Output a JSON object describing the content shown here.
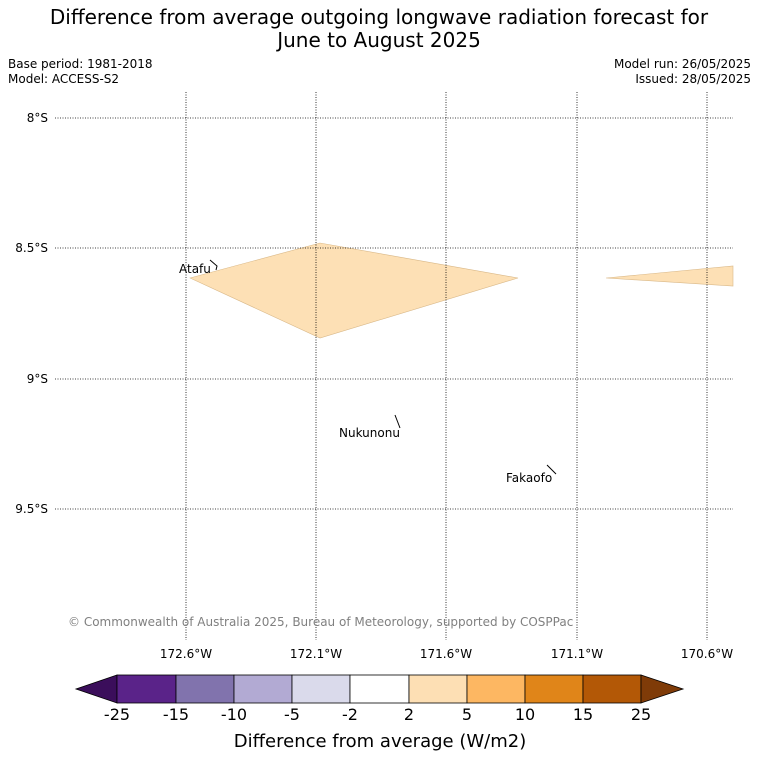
{
  "title_line1": "Difference from average outgoing longwave radiation forecast for",
  "title_line2": "June to August 2025",
  "base_period": "Base period: 1981-2018",
  "model": "Model: ACCESS-S2",
  "model_run": "Model run: 26/05/2025",
  "issued": "Issued: 28/05/2025",
  "copyright": "© Commonwealth of Australia 2025, Bureau of Meteorology, supported by COSPPac",
  "lat_labels": [
    "8°S",
    "8.5°S",
    "9°S",
    "9.5°S"
  ],
  "lon_labels": [
    "172.6°W",
    "172.1°W",
    "171.6°W",
    "171.1°W",
    "170.6°W"
  ],
  "places": [
    {
      "name": "Atafu"
    },
    {
      "name": "Nukunonu"
    },
    {
      "name": "Fakaofo"
    }
  ],
  "anomaly_fill_color": "#fde0b5",
  "colorbar": {
    "title": "Difference from average (W/m2)",
    "tick_labels": [
      "-25",
      "-15",
      "-10",
      "-5",
      "-2",
      "2",
      "5",
      "10",
      "15",
      "25"
    ],
    "colors": [
      "#3b0e5b",
      "#5a2389",
      "#8173ad",
      "#b2aad3",
      "#dadaeb",
      "#ffffff",
      "#fddfb4",
      "#fdb762",
      "#e08519",
      "#b35806",
      "#7f3b08"
    ]
  }
}
